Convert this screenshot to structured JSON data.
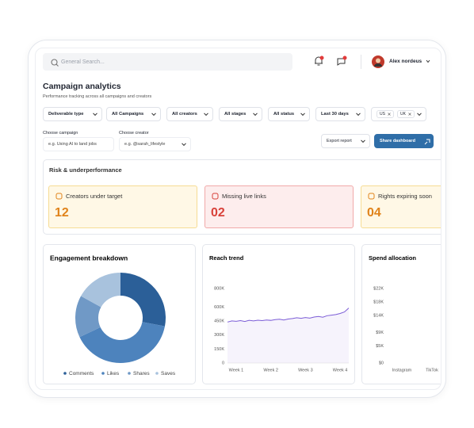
{
  "header": {
    "search_placeholder": "General Search...",
    "user_name": "Alex nordeus"
  },
  "page": {
    "title": "Campaign analytics",
    "subtitle": "Performance tracking across all campaigns and creators"
  },
  "filters": [
    "Deliverable type",
    "All Campaigns",
    "All creators",
    "All stages",
    "All status",
    "Last 30 days"
  ],
  "region_chips": [
    "US",
    "UK"
  ],
  "choose_campaign": {
    "label": "Choose campaign",
    "placeholder": "e.g. Using AI to land jobs"
  },
  "choose_creator": {
    "label": "Choose creator",
    "placeholder": "e.g. @sarah_lifestyle"
  },
  "buttons": {
    "export": "Export report",
    "share": "Share dashboard"
  },
  "risk": {
    "title": "Risk & underperformance",
    "cards": [
      {
        "label": "Creators under target",
        "value": "12"
      },
      {
        "label": "Missing live links",
        "value": "02"
      },
      {
        "label": "Rights expiring soon",
        "value": "04"
      }
    ]
  },
  "chart_data": [
    {
      "type": "pie",
      "title": "Engagement breakdown",
      "categories": [
        "Comments",
        "Likes",
        "Shares",
        "Saves"
      ],
      "values": [
        28,
        40,
        15,
        17
      ],
      "colors": [
        "#2b5f98",
        "#4d83bd",
        "#7099c6",
        "#a8c2dd"
      ]
    },
    {
      "type": "line",
      "title": "Reach trend",
      "categories": [
        null,
        null,
        "Week 1",
        null,
        null,
        null,
        null,
        null,
        null,
        null,
        "Week 2",
        null,
        null,
        null,
        null,
        null,
        null,
        null,
        "Week 3",
        null,
        null,
        null,
        null,
        null,
        null,
        null,
        "Week 4",
        null,
        null
      ],
      "values": [
        440000,
        452000,
        448000,
        455000,
        446000,
        458000,
        452000,
        460000,
        455000,
        462000,
        458000,
        466000,
        470000,
        462000,
        472000,
        478000,
        486000,
        480000,
        488000,
        482000,
        494000,
        500000,
        492000,
        508000,
        514000,
        520000,
        532000,
        548000,
        590000
      ],
      "color": "#7b5cd6",
      "ylim": [
        0,
        800000
      ],
      "yticks": [
        {
          "value": 800000,
          "label": "800K"
        },
        {
          "value": 600000,
          "label": "600K"
        },
        {
          "value": 450000,
          "label": "450K"
        },
        {
          "value": 300000,
          "label": "300K"
        },
        {
          "value": 150000,
          "label": "150K"
        },
        0
      ]
    },
    {
      "type": "bar",
      "title": "Spend allocation",
      "categories": [
        "Instagram",
        "TikTok"
      ],
      "ylim": [
        0,
        22000
      ],
      "yticks": [
        {
          "value": 22000,
          "label": "$22K"
        },
        {
          "value": 18000,
          "label": "$18K"
        },
        {
          "value": 14000,
          "label": "$14K"
        },
        {
          "value": 9000,
          "label": "$9K"
        },
        {
          "value": 5000,
          "label": "$5K"
        },
        {
          "value": 0,
          "label": "$0"
        }
      ]
    }
  ]
}
